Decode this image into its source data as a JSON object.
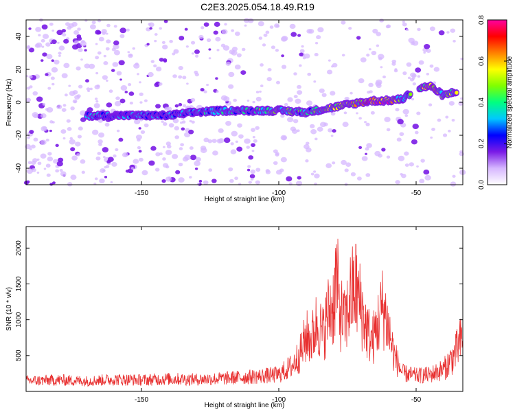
{
  "title": "C2E3.2025.054.18.49.R19",
  "chart_data": [
    {
      "type": "heatmap",
      "xlabel": "Height of straight line (km)",
      "ylabel": "Frequency (Hz)",
      "xlim": [
        -192,
        -33
      ],
      "ylim": [
        -50,
        50
      ],
      "xticks": [
        -150,
        -100,
        -50
      ],
      "yticks": [
        -40,
        -20,
        0,
        20,
        40
      ],
      "grid": false,
      "colorbar": {
        "label": "Normalized spectral amplitude",
        "range": [
          0,
          0.8
        ],
        "ticks": [
          0.0,
          0.2,
          0.4,
          0.6,
          0.8
        ],
        "colors": [
          "#ffffff",
          "#d6b7ff",
          "#7a1be6",
          "#0000ff",
          "#00c8ff",
          "#00ff80",
          "#80ff00",
          "#ffff00",
          "#ff8000",
          "#ff0000",
          "#ff00a0"
        ]
      },
      "ridge": {
        "x": [
          -170,
          -160,
          -150,
          -140,
          -130,
          -120,
          -110,
          -100,
          -90,
          -80,
          -70,
          -65,
          -60,
          -55,
          -50,
          -45,
          -40,
          -35
        ],
        "y": [
          -8,
          -8,
          -8,
          -8,
          -6,
          -5,
          -5,
          -5,
          -6,
          -3,
          0,
          1,
          1,
          2,
          8,
          10,
          4,
          7
        ],
        "amplitude": [
          0.35,
          0.3,
          0.3,
          0.3,
          0.35,
          0.4,
          0.4,
          0.45,
          0.45,
          0.5,
          0.65,
          0.75,
          0.8,
          0.4,
          0.45,
          0.7,
          0.45,
          0.55
        ]
      }
    },
    {
      "type": "line",
      "xlabel": "Height of straight line (km)",
      "ylabel": "SNR (10 * v/v)",
      "xlim": [
        -192,
        -33
      ],
      "ylim": [
        0,
        2300
      ],
      "xticks": [
        -150,
        -100,
        -50
      ],
      "yticks": [
        500,
        1000,
        1500,
        2000
      ],
      "grid": false,
      "series": [
        {
          "color": "#e83030",
          "x": [
            -192,
            -180,
            -170,
            -160,
            -150,
            -140,
            -130,
            -120,
            -110,
            -100,
            -95,
            -92,
            -90,
            -88,
            -86,
            -84,
            -82,
            -80,
            -79,
            -78,
            -76,
            -74,
            -72,
            -70,
            -68,
            -66,
            -64,
            -62,
            -60,
            -58,
            -55,
            -50,
            -45,
            -40,
            -36,
            -33
          ],
          "y": [
            200,
            220,
            200,
            230,
            220,
            240,
            230,
            250,
            280,
            320,
            500,
            750,
            1050,
            1000,
            1350,
            1100,
            1500,
            1700,
            2260,
            1600,
            1300,
            1800,
            2000,
            1600,
            1200,
            950,
            1300,
            1650,
            1200,
            700,
            350,
            300,
            320,
            420,
            700,
            1050
          ]
        }
      ]
    }
  ]
}
